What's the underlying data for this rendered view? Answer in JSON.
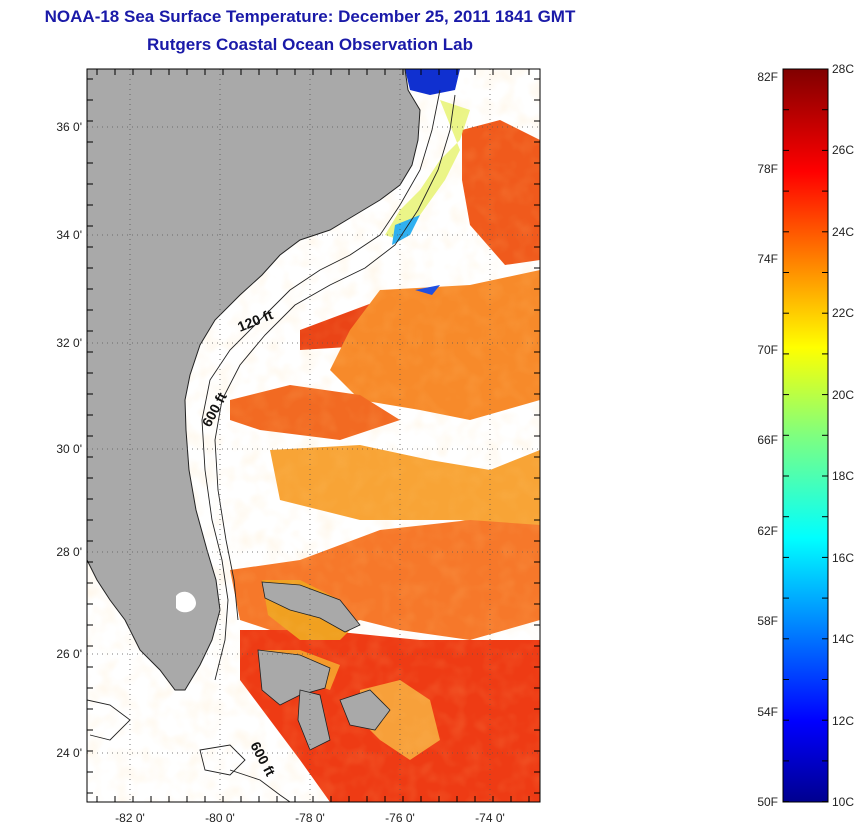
{
  "header": {
    "title": "NOAA-18 Sea Surface Temperature:  December 25, 2011 1841 GMT",
    "subtitle": "Rutgers Coastal Ocean Observation Lab"
  },
  "map": {
    "lat_labels": [
      "36 0'",
      "34 0'",
      "32 0'",
      "30 0'",
      "28 0'",
      "26 0'",
      "24 0'"
    ],
    "lon_labels": [
      "-82 0'",
      "-80 0'",
      "-78 0'",
      "-76 0'",
      "-74 0'"
    ],
    "contour_labels": [
      "120 ft",
      "600 ft",
      "600 ft"
    ],
    "land_color": "#a9a9a9",
    "cloud_color": "#ffffff"
  },
  "colorbar": {
    "fahrenheit_labels": [
      "82F",
      "78F",
      "74F",
      "70F",
      "66F",
      "62F",
      "58F",
      "54F",
      "50F"
    ],
    "celsius_labels": [
      "28C",
      "26C",
      "24C",
      "22C",
      "20C",
      "18C",
      "16C",
      "14C",
      "12C",
      "10C"
    ],
    "range_c": [
      10,
      28
    ],
    "colormap": "jet"
  }
}
